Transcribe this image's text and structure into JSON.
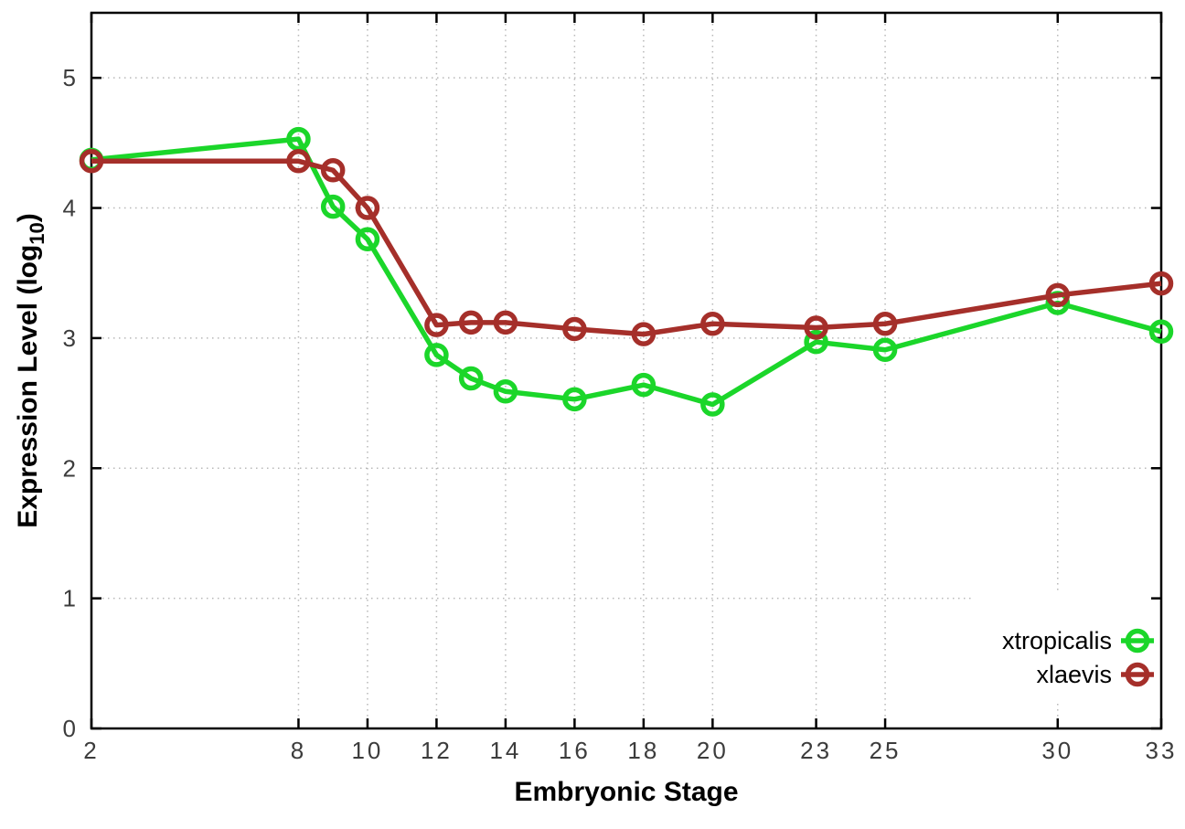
{
  "chart_data": {
    "type": "line",
    "title": "",
    "xlabel": "Embryonic Stage",
    "ylabel": "Expression Level (log10)",
    "ylabel_parts": {
      "prefix": "Expression Level (log",
      "sub": "10",
      "suffix": ")"
    },
    "x": [
      2,
      8,
      9,
      10,
      12,
      13,
      14,
      16,
      18,
      20,
      23,
      25,
      30,
      33
    ],
    "series": [
      {
        "name": "xtropicalis",
        "color": "#1bd62a",
        "values": [
          4.37,
          4.53,
          4.01,
          3.76,
          2.87,
          2.69,
          2.59,
          2.53,
          2.64,
          2.49,
          2.97,
          2.91,
          3.27,
          3.05
        ]
      },
      {
        "name": "xlaevis",
        "color": "#a52f2a",
        "values": [
          4.36,
          4.36,
          4.29,
          4.0,
          3.1,
          3.12,
          3.12,
          3.07,
          3.03,
          3.11,
          3.08,
          3.11,
          3.33,
          3.42
        ]
      }
    ],
    "xlim": [
      2,
      33
    ],
    "ylim": [
      0,
      5.5
    ],
    "xticks": [
      2,
      8,
      10,
      12,
      14,
      16,
      18,
      20,
      23,
      25,
      30,
      33
    ],
    "yticks": [
      0,
      1,
      2,
      3,
      4,
      5
    ],
    "grid": true,
    "legend_position": "bottom-right",
    "marker": "open-circle",
    "colors": {
      "axis": "#000000",
      "grid": "#b8b8b8",
      "tick_label": "#3c3c3c",
      "background": "#ffffff"
    }
  }
}
